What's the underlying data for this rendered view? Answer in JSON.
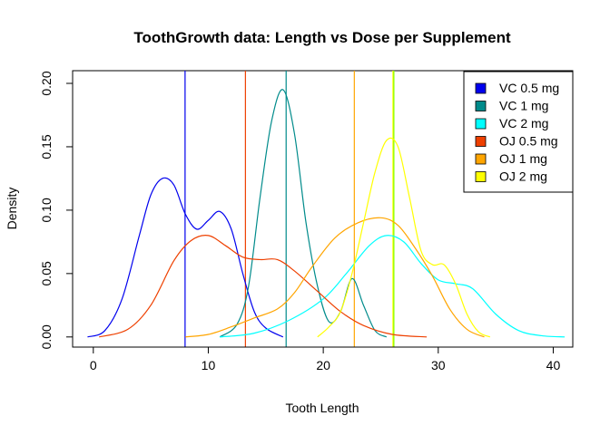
{
  "chart_data": {
    "type": "line",
    "title": "ToothGrowth data: Length vs Dose per Supplement",
    "xlabel": "Tooth Length",
    "ylabel": "Density",
    "xlim": [
      -1.8,
      41.7
    ],
    "ylim": [
      -0.008,
      0.21
    ],
    "xticks": [
      0,
      10,
      20,
      30,
      40
    ],
    "yticks": [
      0.0,
      0.05,
      0.1,
      0.15,
      0.2
    ],
    "ytick_labels": [
      "0.00",
      "0.05",
      "0.10",
      "0.15",
      "0.20"
    ],
    "legend_position": "top-right",
    "grid": false,
    "series": [
      {
        "name": "VC 0.5 mg",
        "color": "#0000ee",
        "mean": 7.98,
        "points": [
          [
            -0.5,
            0.0
          ],
          [
            1,
            0.005
          ],
          [
            2.5,
            0.03
          ],
          [
            4,
            0.08
          ],
          [
            5,
            0.112
          ],
          [
            6,
            0.125
          ],
          [
            7,
            0.12
          ],
          [
            8,
            0.097
          ],
          [
            9,
            0.085
          ],
          [
            10,
            0.092
          ],
          [
            11,
            0.099
          ],
          [
            12,
            0.085
          ],
          [
            13,
            0.05
          ],
          [
            14,
            0.02
          ],
          [
            15,
            0.007
          ],
          [
            16.5,
            0.0
          ]
        ]
      },
      {
        "name": "VC 1 mg",
        "color": "#008b8b",
        "mean": 16.77,
        "points": [
          [
            11,
            0.0
          ],
          [
            12.5,
            0.01
          ],
          [
            13.5,
            0.04
          ],
          [
            14.5,
            0.11
          ],
          [
            15.5,
            0.17
          ],
          [
            16.5,
            0.195
          ],
          [
            17.5,
            0.16
          ],
          [
            18.5,
            0.09
          ],
          [
            19.5,
            0.04
          ],
          [
            20.5,
            0.012
          ],
          [
            21.5,
            0.02
          ],
          [
            22.5,
            0.046
          ],
          [
            23.5,
            0.025
          ],
          [
            24.5,
            0.005
          ],
          [
            25.5,
            0.0
          ]
        ]
      },
      {
        "name": "VC 2 mg",
        "color": "#00ffff",
        "mean": 26.14,
        "points": [
          [
            11,
            0.0
          ],
          [
            14,
            0.003
          ],
          [
            17,
            0.013
          ],
          [
            20,
            0.03
          ],
          [
            22,
            0.05
          ],
          [
            24,
            0.072
          ],
          [
            25.5,
            0.08
          ],
          [
            27,
            0.075
          ],
          [
            28.5,
            0.058
          ],
          [
            30,
            0.045
          ],
          [
            31.5,
            0.042
          ],
          [
            33,
            0.038
          ],
          [
            35,
            0.018
          ],
          [
            37,
            0.005
          ],
          [
            39,
            0.001
          ],
          [
            41,
            0.0
          ]
        ]
      },
      {
        "name": "OJ 0.5 mg",
        "color": "#ee4000",
        "mean": 13.23,
        "points": [
          [
            0.5,
            0.0
          ],
          [
            3,
            0.006
          ],
          [
            5,
            0.025
          ],
          [
            7,
            0.06
          ],
          [
            8.5,
            0.076
          ],
          [
            10,
            0.08
          ],
          [
            11.5,
            0.072
          ],
          [
            13,
            0.063
          ],
          [
            14.5,
            0.061
          ],
          [
            16,
            0.061
          ],
          [
            17.5,
            0.052
          ],
          [
            19.5,
            0.036
          ],
          [
            21.5,
            0.02
          ],
          [
            23.5,
            0.009
          ],
          [
            26,
            0.002
          ],
          [
            29,
            0.0
          ]
        ]
      },
      {
        "name": "OJ 1 mg",
        "color": "#ffa500",
        "mean": 22.7,
        "points": [
          [
            8,
            0.0
          ],
          [
            10,
            0.002
          ],
          [
            12,
            0.008
          ],
          [
            14,
            0.015
          ],
          [
            16,
            0.022
          ],
          [
            17.5,
            0.035
          ],
          [
            19,
            0.055
          ],
          [
            21,
            0.078
          ],
          [
            23,
            0.09
          ],
          [
            25,
            0.094
          ],
          [
            26.5,
            0.088
          ],
          [
            28,
            0.07
          ],
          [
            29.5,
            0.048
          ],
          [
            31,
            0.022
          ],
          [
            32.5,
            0.006
          ],
          [
            34,
            0.0
          ]
        ]
      },
      {
        "name": "OJ 2 mg",
        "color": "#ffff00",
        "mean": 26.06,
        "points": [
          [
            19.5,
            0.0
          ],
          [
            20.5,
            0.008
          ],
          [
            21.5,
            0.02
          ],
          [
            22.5,
            0.05
          ],
          [
            23.5,
            0.09
          ],
          [
            24.5,
            0.13
          ],
          [
            25.5,
            0.155
          ],
          [
            26.5,
            0.15
          ],
          [
            27.5,
            0.11
          ],
          [
            28.5,
            0.068
          ],
          [
            29.5,
            0.057
          ],
          [
            30.5,
            0.057
          ],
          [
            31.5,
            0.042
          ],
          [
            32.5,
            0.018
          ],
          [
            33.5,
            0.004
          ],
          [
            34.5,
            0.0
          ]
        ]
      }
    ],
    "mean_lines": [
      {
        "value": 7.98,
        "color": "#0000ee"
      },
      {
        "value": 13.23,
        "color": "#ee4000"
      },
      {
        "value": 16.77,
        "color": "#008b8b"
      },
      {
        "value": 22.7,
        "color": "#ffa500"
      },
      {
        "value": 26.06,
        "color": "#ffff00"
      },
      {
        "value": 26.14,
        "color": "#7fff00"
      }
    ]
  }
}
